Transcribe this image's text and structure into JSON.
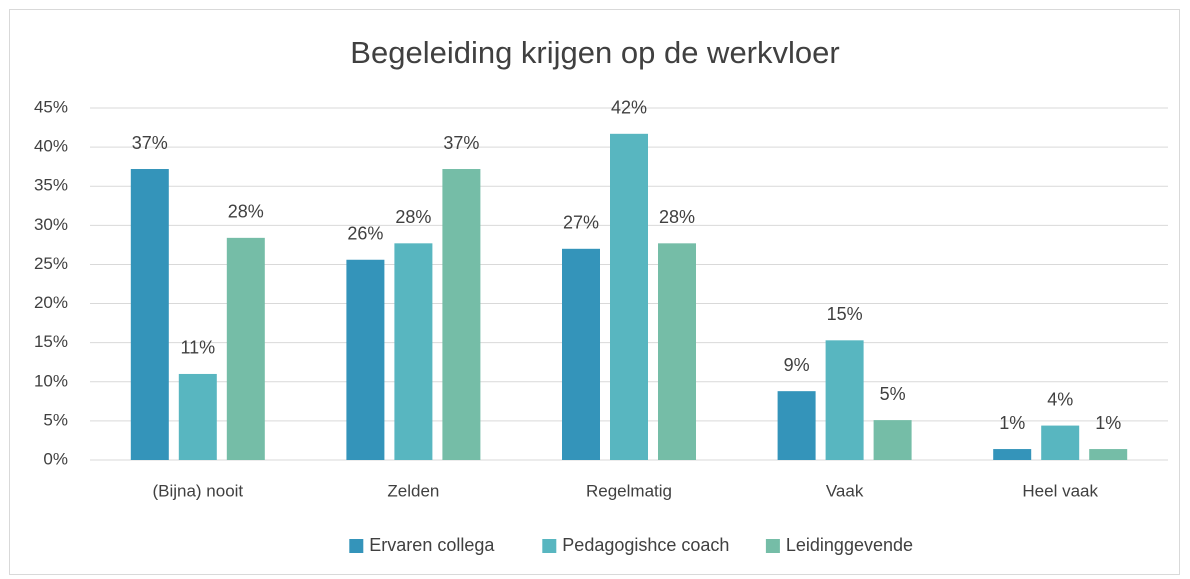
{
  "chart_data": {
    "type": "bar",
    "title": "Begeleiding krijgen op de werkvloer",
    "categories": [
      "(Bijna) nooit",
      "Zelden",
      "Regelmatig",
      "Vaak",
      "Heel vaak"
    ],
    "series": [
      {
        "name": "Ervaren collega",
        "color": "#3494BA",
        "values": [
          37.2,
          25.6,
          27.0,
          8.8,
          1.4
        ],
        "value_labels": [
          "37%",
          "26%",
          "27%",
          "9%",
          "1%"
        ]
      },
      {
        "name": "Pedagogishce coach",
        "color": "#58B6C0",
        "values": [
          11.0,
          27.7,
          41.7,
          15.3,
          4.4
        ],
        "value_labels": [
          "11%",
          "28%",
          "42%",
          "15%",
          "4%"
        ]
      },
      {
        "name": "Leidinggevende",
        "color": "#75BDA7",
        "values": [
          28.4,
          37.2,
          27.7,
          5.1,
          1.4
        ],
        "value_labels": [
          "28%",
          "37%",
          "28%",
          "5%",
          "1%"
        ]
      }
    ],
    "ylim": [
      0,
      45
    ],
    "yticks": [
      {
        "value": 0,
        "label": "0%"
      },
      {
        "value": 5,
        "label": "5%"
      },
      {
        "value": 10,
        "label": "10%"
      },
      {
        "value": 15,
        "label": "15%"
      },
      {
        "value": 20,
        "label": "20%"
      },
      {
        "value": 25,
        "label": "25%"
      },
      {
        "value": 30,
        "label": "30%"
      },
      {
        "value": 35,
        "label": "35%"
      },
      {
        "value": 40,
        "label": "40%"
      },
      {
        "value": 45,
        "label": "45%"
      }
    ],
    "grid": true,
    "legend": "bottom"
  }
}
